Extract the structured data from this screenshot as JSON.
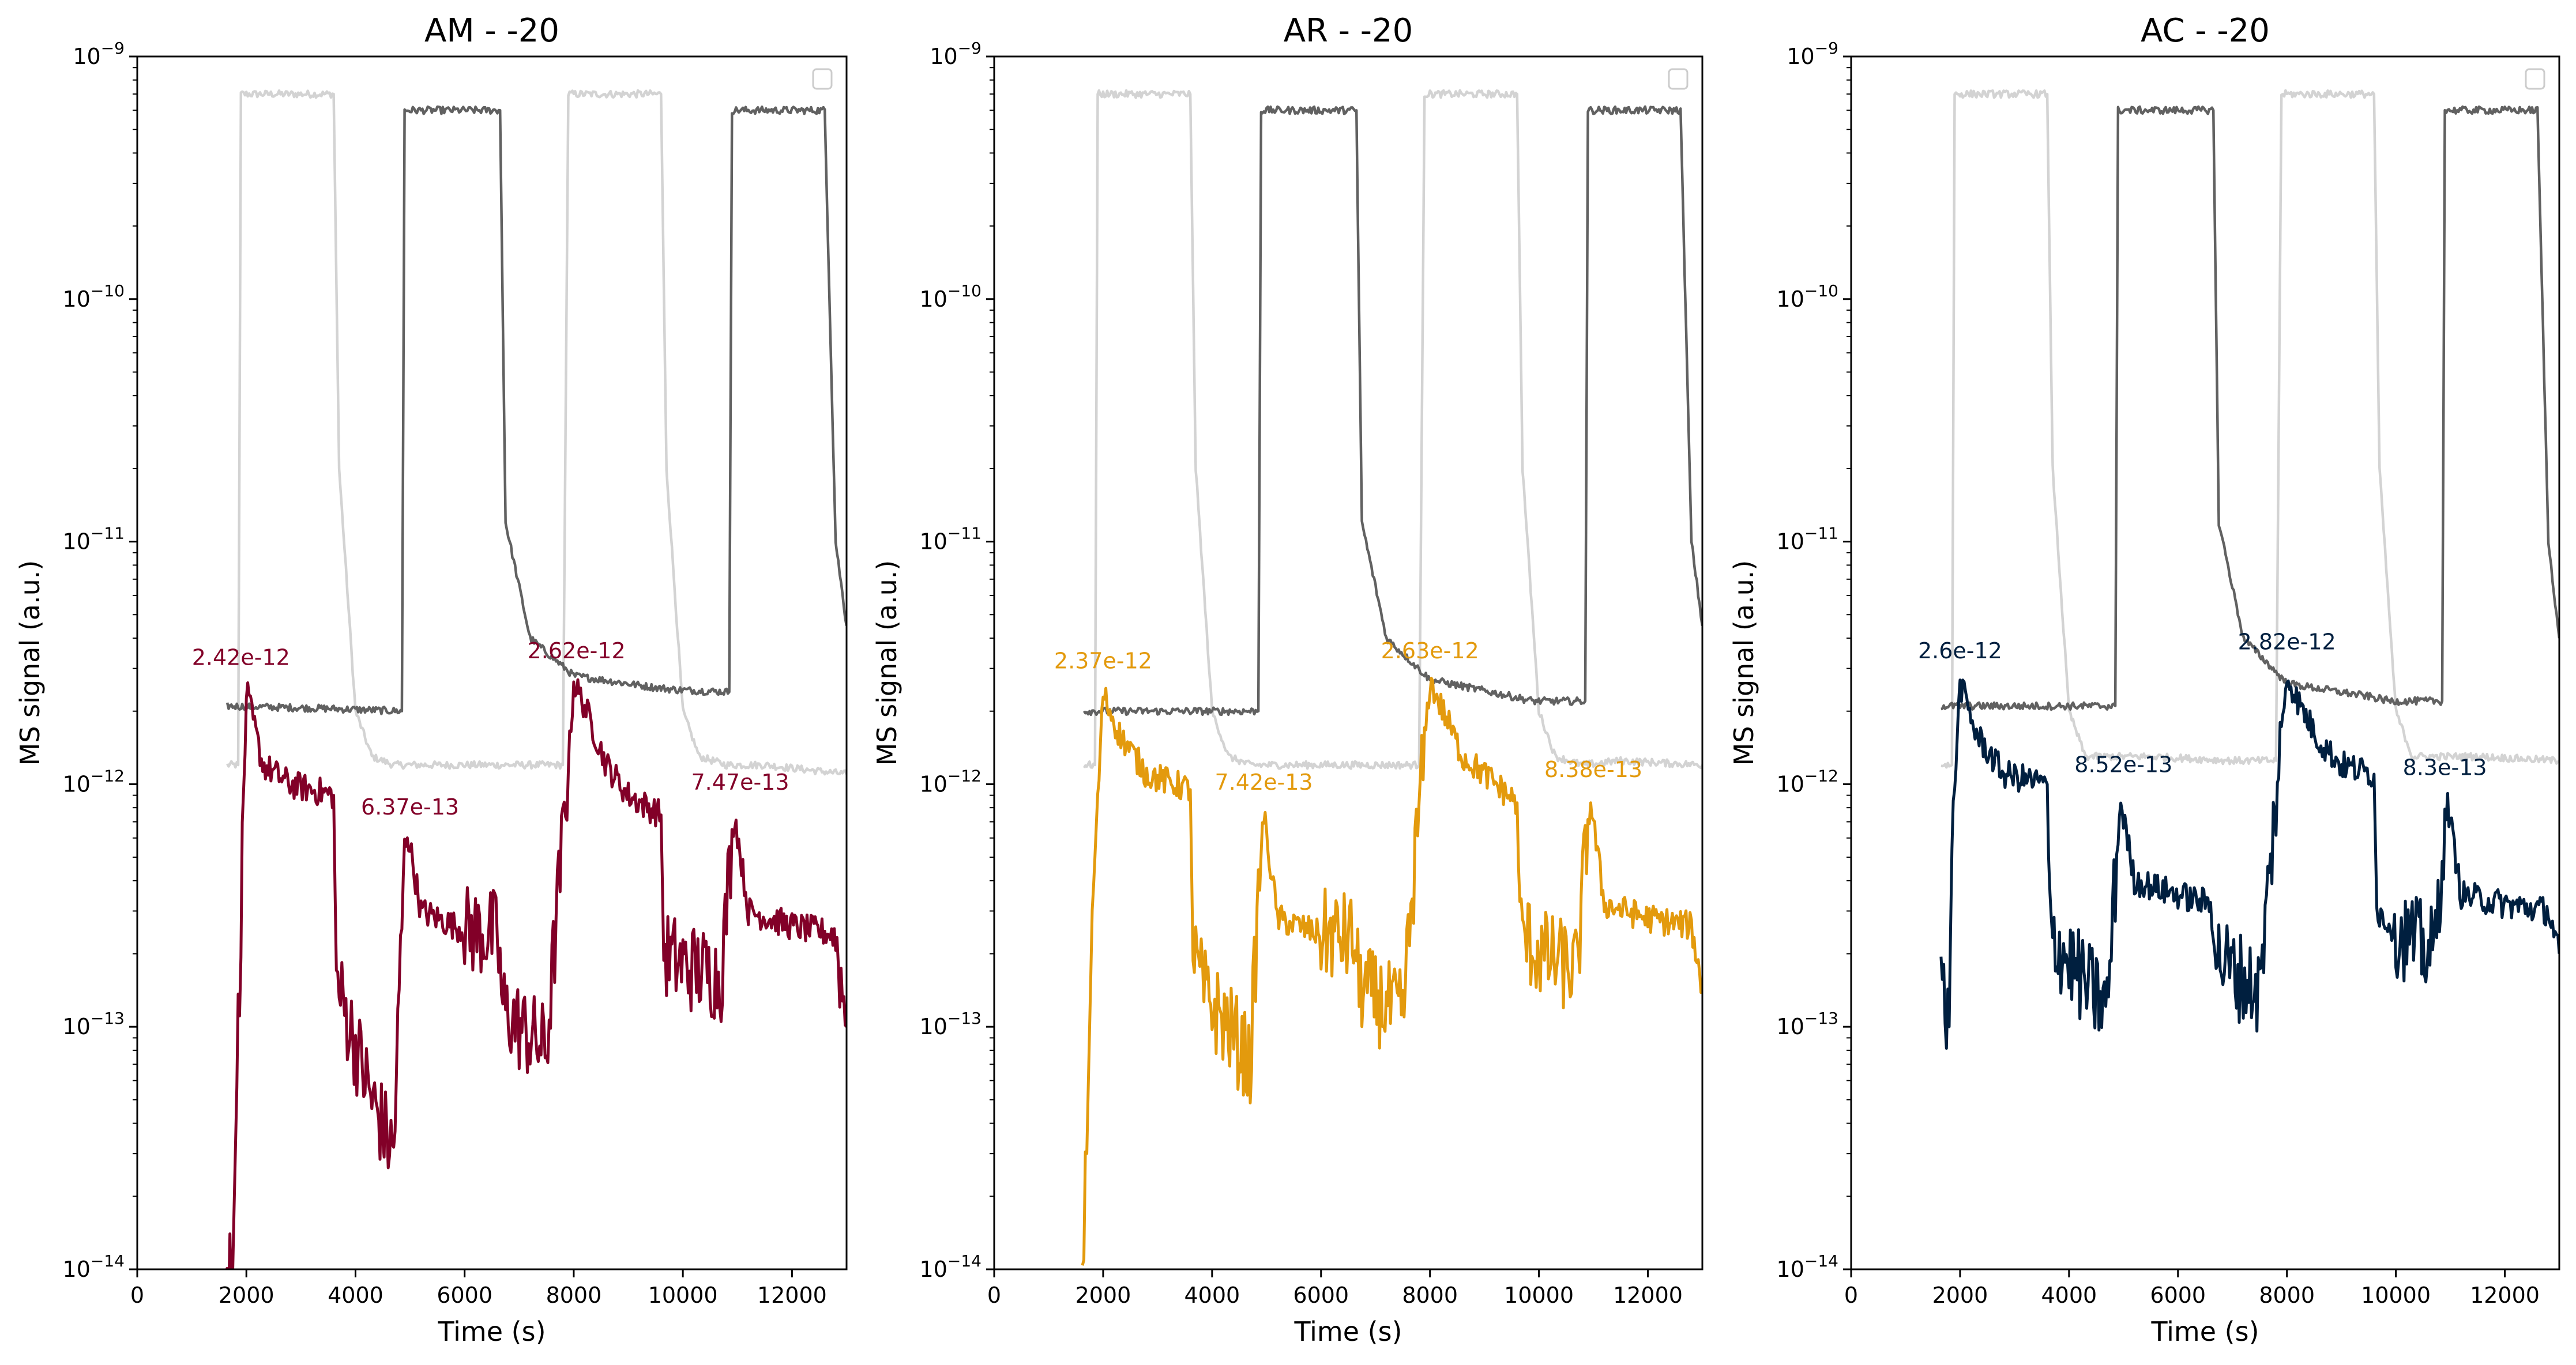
{
  "chart_data": [
    {
      "type": "line",
      "title": "AM - -20",
      "xlabel": "Time (s)",
      "ylabel": "MS signal (a.u.)",
      "xlim": [
        0,
        13000
      ],
      "ylim": [
        1e-14,
        1e-09
      ],
      "yscale": "log",
      "grid": false,
      "legend": "top-right (empty)",
      "x_ticks": [
        0,
        2000,
        4000,
        6000,
        8000,
        10000,
        12000
      ],
      "x_tick_labels": [
        "0",
        "2000",
        "4000",
        "6000",
        "8000",
        "10000",
        "12000"
      ],
      "y_ticks": [
        1e-14,
        1e-13,
        1e-12,
        1e-11,
        1e-10,
        1e-09
      ],
      "y_tick_labels": [
        "10^-14",
        "10^-13",
        "10^-12",
        "10^-11",
        "10^-10",
        "10^-9"
      ],
      "series": [
        {
          "color": "#d3d3d3",
          "x": [
            1650,
            1850,
            1900,
            3600,
            3700,
            4000,
            4300,
            4700,
            5500,
            7000,
            7800,
            7900,
            9600,
            9700,
            10000,
            10300,
            10800,
            11500,
            13000
          ],
          "y": [
            1.2e-12,
            1.2e-12,
            7e-10,
            7e-10,
            2e-11,
            2e-12,
            1.3e-12,
            1.2e-12,
            1.2e-12,
            1.2e-12,
            1.2e-12,
            7e-10,
            7e-10,
            2e-11,
            2e-12,
            1.3e-12,
            1.2e-12,
            1.2e-12,
            1.1e-12
          ]
        },
        {
          "color": "#616161",
          "x": [
            1650,
            3500,
            4850,
            4900,
            6650,
            6750,
            7200,
            8000,
            9500,
            9900,
            10850,
            10900,
            12600,
            12800,
            13000
          ],
          "y": [
            2.1e-12,
            2.05e-12,
            2e-12,
            6e-10,
            6e-10,
            1.2e-11,
            4e-12,
            2.8e-12,
            2.5e-12,
            2.45e-12,
            2.4e-12,
            6e-10,
            6e-10,
            1e-11,
            4.5e-12
          ]
        },
        {
          "color": "#820028",
          "x": [
            1620,
            1750,
            1850,
            2000,
            2300,
            2800,
            3600,
            3650,
            3900,
            4300,
            4700,
            4900,
            4950,
            5200,
            6000,
            6600,
            6700,
            7000,
            7500,
            7900,
            8000,
            8200,
            8600,
            9000,
            9600,
            9650,
            10000,
            10700,
            10900,
            10950,
            11200,
            12000,
            12800,
            13000
          ],
          "y": [
            1e-14,
            1e-14,
            1e-13,
            2.42e-12,
            1.2e-12,
            1e-12,
            9e-13,
            1.5e-13,
            1e-13,
            5e-14,
            3e-14,
            5.5e-13,
            6.37e-13,
            3e-13,
            2.5e-13,
            2.4e-13,
            1.2e-13,
            1e-13,
            8e-14,
            1.2e-12,
            2.62e-12,
            2.1e-12,
            1.2e-12,
            9e-13,
            7.47e-13,
            2e-13,
            1.8e-13,
            1.6e-13,
            6e-13,
            7.5e-13,
            3e-13,
            2.6e-13,
            2.4e-13,
            1e-13
          ]
        }
      ],
      "annotations": [
        {
          "text": "2.42e-12",
          "x": 1900,
          "y": 3.1e-12
        },
        {
          "text": "6.37e-13",
          "x": 5000,
          "y": 7.5e-13
        },
        {
          "text": "2.62e-12",
          "x": 8050,
          "y": 3.3e-12
        },
        {
          "text": "7.47e-13",
          "x": 11050,
          "y": 9.5e-13
        }
      ]
    },
    {
      "type": "line",
      "title": "AR - -20",
      "xlabel": "Time (s)",
      "ylabel": "MS signal (a.u.)",
      "xlim": [
        0,
        13000
      ],
      "ylim": [
        1e-14,
        1e-09
      ],
      "yscale": "log",
      "grid": false,
      "legend": "top-right (empty)",
      "x_ticks": [
        0,
        2000,
        4000,
        6000,
        8000,
        10000,
        12000
      ],
      "x_tick_labels": [
        "0",
        "2000",
        "4000",
        "6000",
        "8000",
        "10000",
        "12000"
      ],
      "y_ticks": [
        1e-14,
        1e-13,
        1e-12,
        1e-11,
        1e-10,
        1e-09
      ],
      "y_tick_labels": [
        "10^-14",
        "10^-13",
        "10^-12",
        "10^-11",
        "10^-10",
        "10^-9"
      ],
      "series": [
        {
          "color": "#d3d3d3",
          "x": [
            1650,
            1850,
            1900,
            3600,
            3700,
            4000,
            4300,
            4700,
            5500,
            7000,
            7800,
            7900,
            9600,
            9700,
            10000,
            10300,
            10800,
            11500,
            13000
          ],
          "y": [
            1.2e-12,
            1.2e-12,
            7e-10,
            7e-10,
            2e-11,
            2e-12,
            1.3e-12,
            1.2e-12,
            1.2e-12,
            1.2e-12,
            1.2e-12,
            7e-10,
            7e-10,
            2e-11,
            2e-12,
            1.3e-12,
            1.2e-12,
            1.25e-12,
            1.2e-12
          ]
        },
        {
          "color": "#616161",
          "x": [
            1650,
            3500,
            4850,
            4900,
            6650,
            6750,
            7200,
            8000,
            9500,
            9900,
            10850,
            10900,
            12600,
            12800,
            13000
          ],
          "y": [
            2e-12,
            2e-12,
            2e-12,
            6e-10,
            6e-10,
            1.2e-11,
            4e-12,
            2.7e-12,
            2.3e-12,
            2.2e-12,
            2.2e-12,
            6e-10,
            6e-10,
            1e-11,
            4.5e-12
          ]
        },
        {
          "color": "#e39a0d",
          "x": [
            1620,
            1700,
            1800,
            2000,
            2300,
            2800,
            3600,
            3650,
            3900,
            4300,
            4700,
            4900,
            4950,
            5200,
            6000,
            6600,
            6700,
            7000,
            7500,
            7900,
            8000,
            8200,
            8600,
            9000,
            9600,
            9650,
            10000,
            10700,
            10900,
            10950,
            11200,
            12000,
            12800,
            13000
          ],
          "y": [
            1e-14,
            3e-14,
            3e-13,
            2.37e-12,
            1.6e-12,
            1.1e-12,
            9.5e-13,
            2e-13,
            1.3e-13,
            1e-13,
            7e-14,
            5.5e-13,
            7.42e-13,
            2.8e-13,
            2.4e-13,
            2.3e-13,
            1.5e-13,
            1.3e-13,
            1.1e-13,
            1.5e-12,
            2.63e-12,
            2.1e-12,
            1.3e-12,
            1.1e-12,
            8.38e-13,
            2.5e-13,
            2e-13,
            1.7e-13,
            7e-13,
            8.4e-13,
            3.2e-13,
            2.8e-13,
            2.6e-13,
            1.4e-13
          ]
        }
      ],
      "annotations": [
        {
          "text": "2.37e-12",
          "x": 2000,
          "y": 3e-12
        },
        {
          "text": "7.42e-13",
          "x": 4950,
          "y": 9.5e-13
        },
        {
          "text": "2.63e-12",
          "x": 8000,
          "y": 3.3e-12
        },
        {
          "text": "8.38e-13",
          "x": 11000,
          "y": 1.07e-12
        }
      ]
    },
    {
      "type": "line",
      "title": "AC - -20",
      "xlabel": "Time (s)",
      "ylabel": "MS signal (a.u.)",
      "xlim": [
        0,
        13000
      ],
      "ylim": [
        1e-14,
        1e-09
      ],
      "yscale": "log",
      "grid": false,
      "legend": "top-right (empty)",
      "x_ticks": [
        0,
        2000,
        4000,
        6000,
        8000,
        10000,
        12000
      ],
      "x_tick_labels": [
        "0",
        "2000",
        "4000",
        "6000",
        "8000",
        "10000",
        "12000"
      ],
      "y_ticks": [
        1e-14,
        1e-13,
        1e-12,
        1e-11,
        1e-10,
        1e-09
      ],
      "y_tick_labels": [
        "10^-14",
        "10^-13",
        "10^-12",
        "10^-11",
        "10^-10",
        "10^-9"
      ],
      "series": [
        {
          "color": "#d3d3d3",
          "x": [
            1650,
            1850,
            1900,
            3600,
            3700,
            4000,
            4300,
            4700,
            5500,
            7000,
            7800,
            7900,
            9600,
            9700,
            10000,
            10300,
            10800,
            11500,
            13000
          ],
          "y": [
            1.2e-12,
            1.2e-12,
            7e-10,
            7e-10,
            2e-11,
            2e-12,
            1.3e-12,
            1.3e-12,
            1.3e-12,
            1.25e-12,
            1.25e-12,
            7e-10,
            7e-10,
            2e-11,
            2e-12,
            1.3e-12,
            1.3e-12,
            1.3e-12,
            1.25e-12
          ]
        },
        {
          "color": "#616161",
          "x": [
            1650,
            3500,
            4850,
            4900,
            6650,
            6750,
            7200,
            8000,
            9500,
            9900,
            10850,
            10900,
            12600,
            12800,
            13000
          ],
          "y": [
            2.1e-12,
            2.1e-12,
            2.1e-12,
            6e-10,
            6e-10,
            1.2e-11,
            4e-12,
            2.6e-12,
            2.3e-12,
            2.2e-12,
            2.2e-12,
            6e-10,
            6e-10,
            1e-11,
            4e-12
          ]
        },
        {
          "color": "#001f3f",
          "x": [
            1650,
            1800,
            1850,
            2000,
            2300,
            2800,
            3600,
            3650,
            3900,
            4300,
            4700,
            4900,
            4950,
            5200,
            6000,
            6600,
            6700,
            7000,
            7500,
            7900,
            8000,
            8200,
            8600,
            9000,
            9600,
            9650,
            10000,
            10700,
            10900,
            10950,
            11200,
            12000,
            12800,
            13000
          ],
          "y": [
            1.5e-13,
            1e-13,
            6e-13,
            2.6e-12,
            1.6e-12,
            1.1e-12,
            1e-12,
            2.5e-13,
            2e-13,
            1.5e-13,
            1.2e-13,
            6e-13,
            8.52e-13,
            4e-13,
            3.5e-13,
            3.2e-13,
            2e-13,
            1.7e-13,
            1.4e-13,
            1.6e-12,
            2.82e-12,
            2.2e-12,
            1.5e-12,
            1.2e-12,
            1.1e-12,
            3e-13,
            2.5e-13,
            2e-13,
            7e-13,
            8.3e-13,
            3.5e-13,
            3.2e-13,
            3e-13,
            2e-13
          ]
        }
      ],
      "annotations": [
        {
          "text": "2.6e-12",
          "x": 2000,
          "y": 3.3e-12
        },
        {
          "text": "8.52e-13",
          "x": 5000,
          "y": 1.12e-12
        },
        {
          "text": "2.82e-12",
          "x": 8000,
          "y": 3.6e-12
        },
        {
          "text": "8.3e-13",
          "x": 10900,
          "y": 1.09e-12
        }
      ]
    }
  ]
}
